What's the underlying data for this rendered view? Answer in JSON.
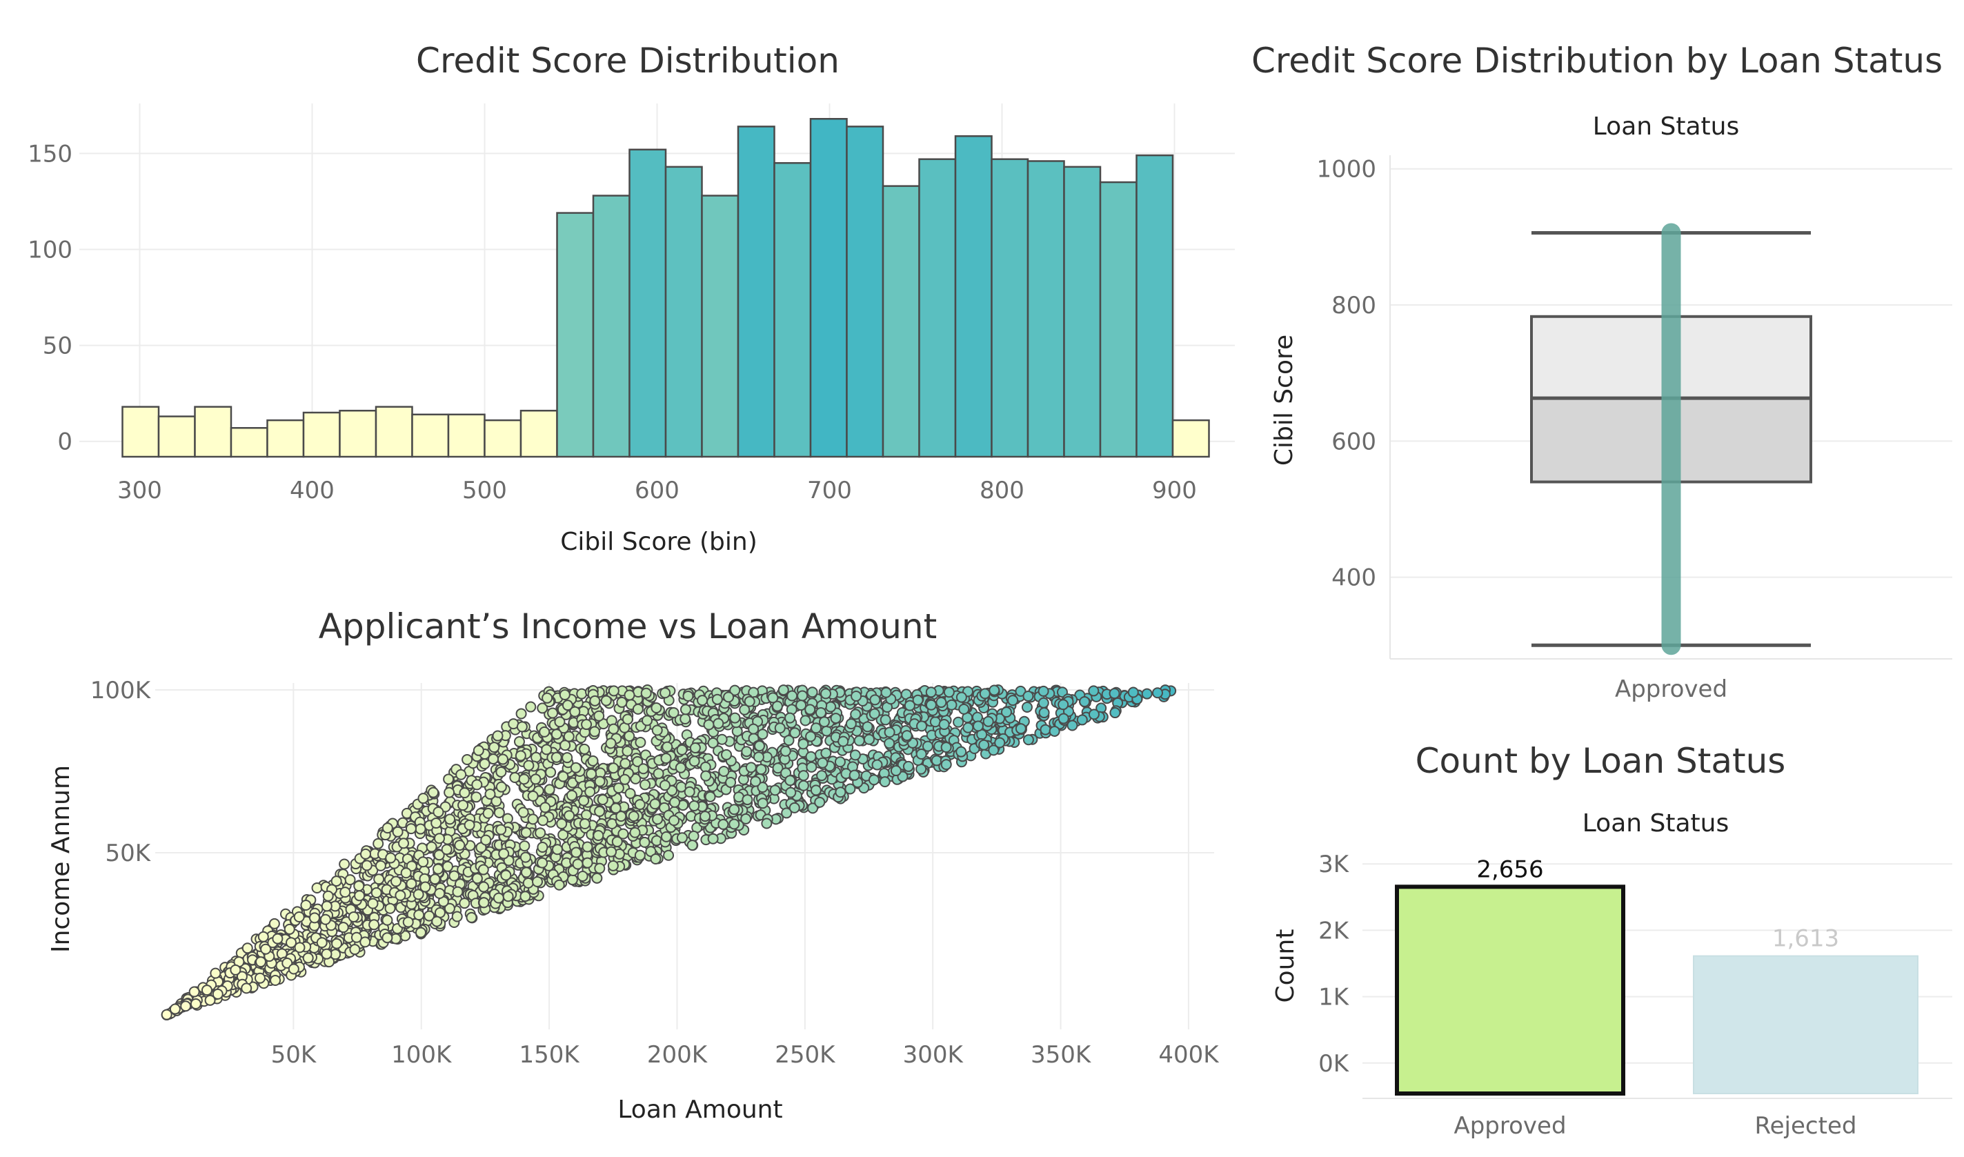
{
  "chart_data": [
    {
      "id": "hist",
      "type": "bar",
      "title": "Credit Score Distribution",
      "xlabel": "Cibil Score (bin)",
      "ylabel": "",
      "bin_width": 21,
      "bin_start": 290,
      "values": [
        18,
        13,
        18,
        7,
        11,
        15,
        16,
        18,
        14,
        14,
        11,
        16,
        119,
        128,
        152,
        143,
        128,
        164,
        145,
        168,
        164,
        133,
        147,
        159,
        147,
        146,
        143,
        135,
        149,
        11
      ],
      "xlim": [
        265,
        935
      ],
      "ylim": [
        -8,
        176
      ],
      "xticks": [
        300,
        400,
        500,
        600,
        700,
        800,
        900
      ],
      "yticks": [
        0,
        50,
        100,
        150
      ],
      "grid": true,
      "colors": {
        "low": "#ffffcc",
        "scale": [
          "#7fcdbb",
          "#41b6c4"
        ],
        "edge": "#4a4a4a"
      }
    },
    {
      "id": "box",
      "type": "box",
      "title": "Credit Score Distribution by Loan Status",
      "subtitle": "Loan Status",
      "ylabel": "Cibil Score",
      "categories": [
        "Approved"
      ],
      "box": {
        "min": 300,
        "q1": 540,
        "median": 663,
        "q3": 783,
        "max": 906
      },
      "points_range": [
        300,
        906
      ],
      "ylim": [
        280,
        1020
      ],
      "yticks": [
        400,
        600,
        800,
        1000
      ],
      "grid": true,
      "colors": {
        "upper": "#ebebeb",
        "lower": "#d6d6d6",
        "line": "#555555",
        "points": "#5fa59a"
      }
    },
    {
      "id": "scatter",
      "type": "scatter",
      "title": "Applicant’s Income vs Loan Amount",
      "xlabel": "Loan Amount",
      "ylabel": "Income Annum",
      "point_count": 2656,
      "xlim": [
        0,
        410000
      ],
      "ylim": [
        0,
        100000
      ],
      "xticks": [
        50000,
        100000,
        150000,
        200000,
        250000,
        300000,
        350000,
        400000
      ],
      "xtick_labels": [
        "50K",
        "100K",
        "150K",
        "200K",
        "250K",
        "300K",
        "350K",
        "400K"
      ],
      "yticks": [
        50000,
        100000
      ],
      "ytick_labels": [
        "50K",
        "100K"
      ],
      "grid": true,
      "colors": {
        "low": "#ffffcc",
        "mid": "#c7e9b4",
        "high": "#41b6c4",
        "edge": "#4a4a4a"
      }
    },
    {
      "id": "count",
      "type": "bar",
      "title": "Count by Loan Status",
      "subtitle": "Loan Status",
      "ylabel": "Count",
      "categories": [
        "Approved",
        "Rejected"
      ],
      "values": [
        2656,
        1613
      ],
      "data_labels": [
        "2,656",
        "1,613"
      ],
      "ylim": [
        -200,
        3200
      ],
      "yticks": [
        0,
        1000,
        2000,
        3000
      ],
      "ytick_labels": [
        "0K",
        "1K",
        "2K",
        "3K"
      ],
      "grid": true,
      "colors": {
        "Approved": "#c7f08f",
        "Rejected": "#d0e6ea",
        "label_faded": "#c9c9c9"
      }
    }
  ]
}
